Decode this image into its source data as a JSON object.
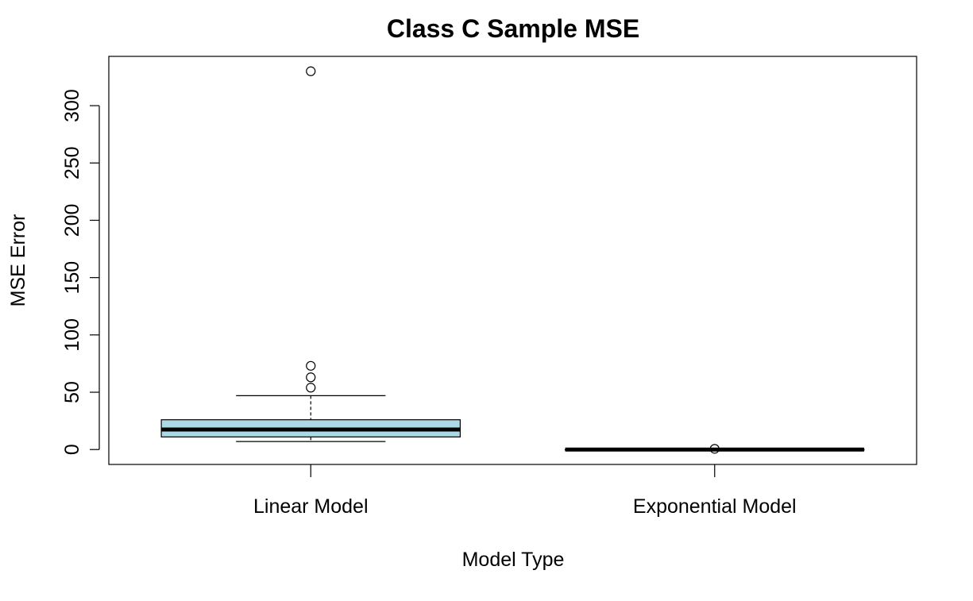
{
  "chart_data": {
    "type": "boxplot",
    "title": "Class C Sample MSE",
    "xlabel": "Model Type",
    "ylabel": "MSE Error",
    "ylim": [
      -13,
      343
    ],
    "yticks": [
      0,
      50,
      100,
      150,
      200,
      250,
      300
    ],
    "grid": false,
    "legend": "none",
    "categories": [
      "Linear Model",
      "Exponential Model"
    ],
    "series": [
      {
        "category": "Linear Model",
        "box_color": "#add8e6",
        "whisker_low": 7,
        "q1": 11,
        "median": 17.5,
        "q3": 26,
        "whisker_high": 47,
        "outliers": [
          54,
          63,
          73,
          330
        ]
      },
      {
        "category": "Exponential Model",
        "box_color": "#add8e6",
        "whisker_low": 0,
        "q1": 0,
        "median": 0,
        "q3": 0,
        "whisker_high": 0,
        "outliers": [
          0.6
        ]
      }
    ]
  }
}
